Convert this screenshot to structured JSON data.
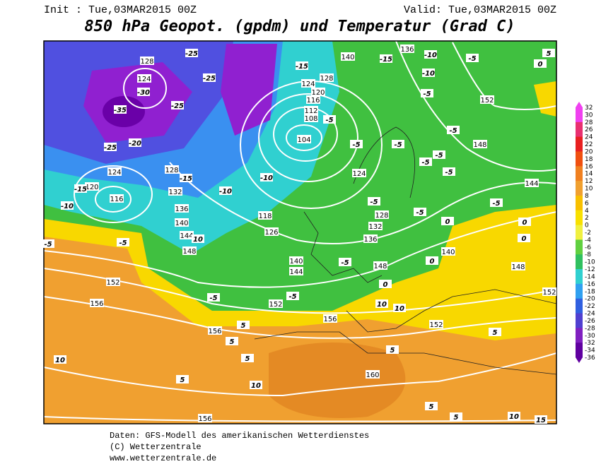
{
  "header": {
    "init": "Init : Tue,03MAR2015 00Z",
    "valid": "Valid: Tue,03MAR2015 00Z",
    "title": "850 hPa Geopot. (gpdm) und Temperatur (Grad C)"
  },
  "colorbar": {
    "labels": [
      32,
      30,
      28,
      26,
      24,
      22,
      20,
      18,
      16,
      14,
      12,
      10,
      8,
      6,
      4,
      2,
      0,
      -2,
      -4,
      -6,
      -8,
      -10,
      -12,
      -14,
      -16,
      -18,
      -20,
      -22,
      -24,
      -26,
      -28,
      -30,
      -32,
      -34,
      -36
    ]
  },
  "map": {
    "geopotential_labels": [
      "128",
      "124",
      "120",
      "116",
      "124",
      "128",
      "132",
      "136",
      "140",
      "144",
      "148",
      "152",
      "156",
      "156",
      "156",
      "160",
      "152",
      "156",
      "152",
      "148",
      "140",
      "144",
      "136",
      "132",
      "128",
      "124",
      "104",
      "108",
      "112",
      "116",
      "120",
      "124",
      "128",
      "140",
      "136",
      "152",
      "148",
      "144",
      "140",
      "148",
      "152",
      "118",
      "126"
    ],
    "temperature_labels": [
      "-25",
      "-25",
      "-30",
      "-35",
      "-25",
      "-20",
      "-25",
      "-15",
      "-10",
      "-15",
      "-10",
      "-10",
      "-5",
      "10",
      "-5",
      "5",
      "5",
      "5",
      "10",
      "5",
      "10",
      "-5",
      "-5",
      "-5",
      "0",
      "10",
      "10",
      "5",
      "5",
      "5",
      "10",
      "15",
      "-5",
      "-5",
      "-5",
      "-10",
      "-10",
      "-5",
      "-5",
      "0",
      "5",
      "-5",
      "0",
      "0",
      "0",
      "5",
      "-15",
      "-15",
      "-5",
      "-5",
      "-5",
      "-5",
      "-5",
      "-5",
      "0"
    ]
  },
  "footer": {
    "lines": [
      "Daten: GFS-Modell des amerikanischen Wetterdienstes",
      "(C) Wetterzentrale",
      "www.wetterzentrale.de"
    ]
  }
}
